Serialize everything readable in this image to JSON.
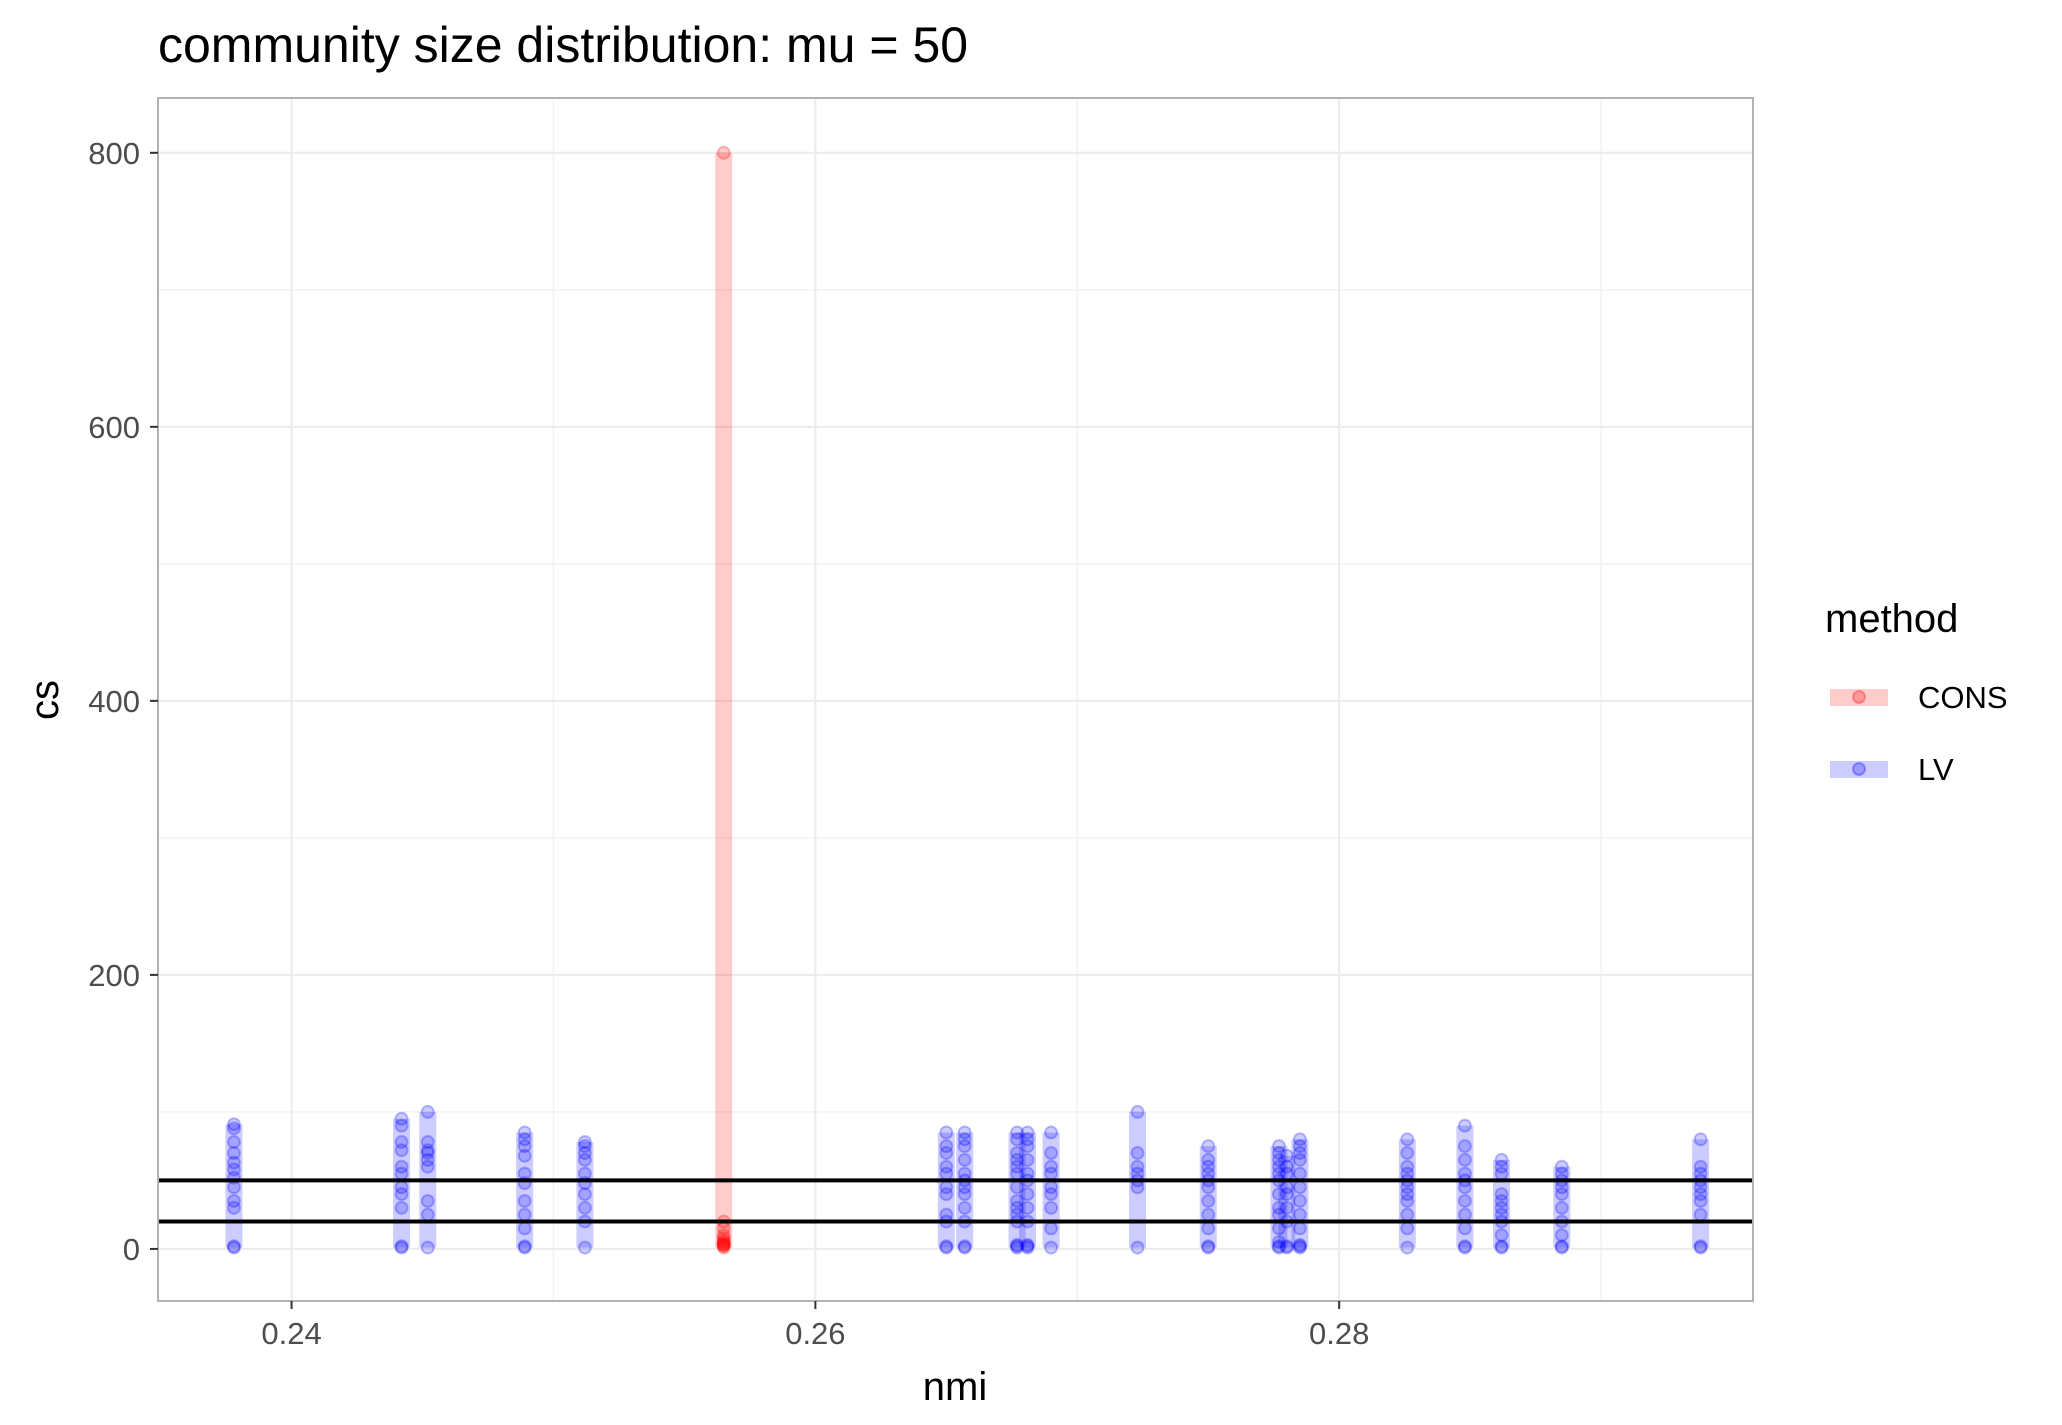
{
  "chart_data": {
    "type": "scatter",
    "title": "community size distribution:  mu = 50",
    "xlabel": "nmi",
    "ylabel": "cs",
    "xlim": [
      0.2349,
      0.2958
    ],
    "ylim": [
      -38,
      840
    ],
    "x_ticks": [
      0.24,
      0.26,
      0.28
    ],
    "x_tick_labels": [
      "0.24",
      "0.26",
      "0.28"
    ],
    "y_ticks": [
      0,
      200,
      400,
      600,
      800
    ],
    "y_tick_labels": [
      "0",
      "200",
      "400",
      "600",
      "800"
    ],
    "grid": true,
    "legend": {
      "title": "method",
      "position": "right"
    },
    "reference_lines": [
      20,
      50
    ],
    "colors": {
      "CONS": "#ff0000",
      "LV": "#0000ff",
      "ref_line": "#000000",
      "grid": "#ebebeb",
      "panel_border": "#b3b3b3"
    },
    "series": [
      {
        "name": "CONS",
        "color": "#ff0000",
        "groups": [
          {
            "x": 0.2565,
            "cs": [
              1,
              2,
              3,
              3,
              4,
              5,
              6,
              8,
              10,
              15,
              20,
              800
            ]
          }
        ]
      },
      {
        "name": "LV",
        "color": "#0000ff",
        "groups": [
          {
            "x": 0.2378,
            "cs": [
              1,
              2,
              30,
              35,
              45,
              52,
              58,
              63,
              70,
              78,
              88,
              91
            ]
          },
          {
            "x": 0.2442,
            "cs": [
              1,
              2,
              30,
              40,
              45,
              55,
              60,
              72,
              78,
              90,
              95
            ]
          },
          {
            "x": 0.2452,
            "cs": [
              1,
              25,
              35,
              60,
              65,
              70,
              72,
              78,
              100
            ]
          },
          {
            "x": 0.2489,
            "cs": [
              1,
              2,
              15,
              25,
              35,
              48,
              55,
              68,
              75,
              80,
              85
            ]
          },
          {
            "x": 0.2512,
            "cs": [
              1,
              20,
              30,
              40,
              48,
              55,
              65,
              70,
              75,
              78
            ]
          },
          {
            "x": 0.265,
            "cs": [
              1,
              2,
              20,
              25,
              40,
              45,
              55,
              60,
              70,
              75,
              85
            ]
          },
          {
            "x": 0.2657,
            "cs": [
              1,
              2,
              20,
              30,
              40,
              45,
              50,
              55,
              65,
              75,
              80,
              85
            ]
          },
          {
            "x": 0.2677,
            "cs": [
              1,
              2,
              3,
              20,
              25,
              30,
              35,
              45,
              55,
              60,
              65,
              70,
              80,
              85
            ]
          },
          {
            "x": 0.2681,
            "cs": [
              1,
              2,
              3,
              20,
              30,
              40,
              50,
              55,
              65,
              75,
              80,
              85
            ]
          },
          {
            "x": 0.269,
            "cs": [
              1,
              15,
              30,
              40,
              45,
              55,
              60,
              70,
              85
            ]
          },
          {
            "x": 0.2723,
            "cs": [
              1,
              45,
              50,
              55,
              60,
              70,
              100
            ]
          },
          {
            "x": 0.275,
            "cs": [
              1,
              2,
              15,
              25,
              35,
              45,
              50,
              55,
              60,
              65,
              75
            ]
          },
          {
            "x": 0.2777,
            "cs": [
              1,
              2,
              5,
              15,
              25,
              30,
              40,
              50,
              55,
              60,
              65,
              70,
              75
            ]
          },
          {
            "x": 0.278,
            "cs": [
              1,
              2,
              20,
              30,
              40,
              45,
              55,
              60,
              68
            ]
          },
          {
            "x": 0.2785,
            "cs": [
              1,
              2,
              3,
              15,
              25,
              35,
              45,
              55,
              65,
              70,
              75,
              80
            ]
          },
          {
            "x": 0.2826,
            "cs": [
              1,
              15,
              25,
              35,
              40,
              45,
              50,
              55,
              60,
              70,
              80
            ]
          },
          {
            "x": 0.2848,
            "cs": [
              1,
              2,
              15,
              25,
              35,
              45,
              50,
              55,
              65,
              75,
              90
            ]
          },
          {
            "x": 0.2862,
            "cs": [
              1,
              2,
              10,
              20,
              25,
              30,
              35,
              40,
              55,
              60,
              65
            ]
          },
          {
            "x": 0.2885,
            "cs": [
              1,
              2,
              10,
              20,
              30,
              40,
              45,
              50,
              55,
              60
            ]
          },
          {
            "x": 0.2938,
            "cs": [
              1,
              2,
              25,
              35,
              40,
              45,
              50,
              55,
              60,
              80
            ]
          }
        ]
      }
    ]
  }
}
